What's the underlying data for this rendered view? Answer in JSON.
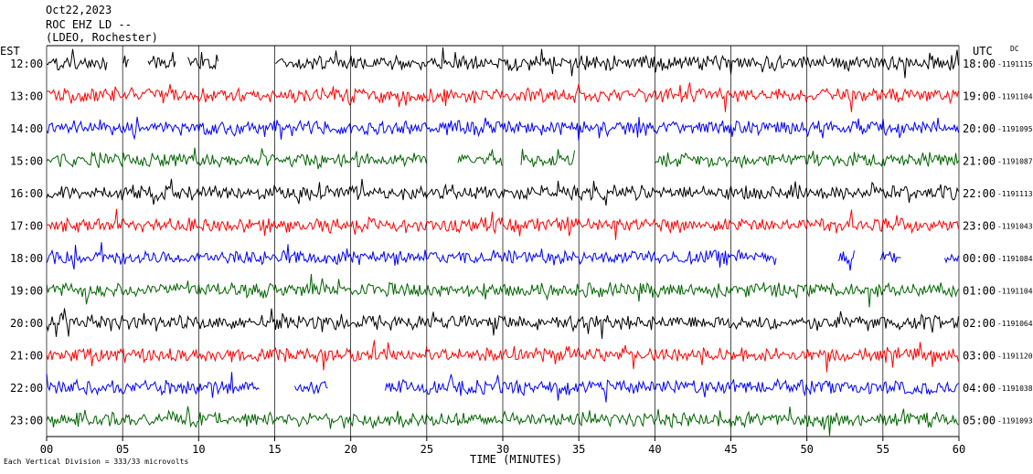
{
  "header": {
    "date": "Oct22,2023",
    "station": "ROC EHZ LD --",
    "network": "(LDEO, Rochester)"
  },
  "footer": {
    "scale_note": "Each Vertical Division = 333/33 microvolts"
  },
  "chart_data": {
    "type": "line",
    "title": "",
    "left_axis_label": "EST",
    "right_axis_label": "UTC",
    "dc_label": "DC",
    "xlabel": "TIME (MINUTES)",
    "xlim": [
      0,
      60
    ],
    "x_ticks": [
      "00",
      "05",
      "10",
      "15",
      "20",
      "25",
      "30",
      "35",
      "40",
      "45",
      "50",
      "55",
      "60"
    ],
    "grid": true,
    "row_colors": [
      "#000000",
      "#ff0000",
      "#0000ff",
      "#006400"
    ],
    "rows": [
      {
        "est": "12:00",
        "utc": "18:00",
        "dc": "1191115",
        "gaps": [
          [
            4,
            5
          ],
          [
            5.5,
            6.6
          ],
          [
            8.5,
            9.2
          ],
          [
            11.3,
            15
          ]
        ]
      },
      {
        "est": "13:00",
        "utc": "19:00",
        "dc": "1191104",
        "gaps": []
      },
      {
        "est": "14:00",
        "utc": "20:00",
        "dc": "1191095",
        "gaps": []
      },
      {
        "est": "15:00",
        "utc": "21:00",
        "dc": "1191087",
        "gaps": [
          [
            25,
            27
          ],
          [
            30,
            31.2
          ],
          [
            34.8,
            40
          ]
        ]
      },
      {
        "est": "16:00",
        "utc": "22:00",
        "dc": "1191113",
        "gaps": []
      },
      {
        "est": "17:00",
        "utc": "23:00",
        "dc": "1191043",
        "gaps": []
      },
      {
        "est": "18:00",
        "utc": "00:00",
        "dc": "1191084",
        "gaps": [
          [
            48,
            52
          ],
          [
            53.2,
            54.8
          ],
          [
            56.2,
            59
          ]
        ]
      },
      {
        "est": "19:00",
        "utc": "01:00",
        "dc": "1191104",
        "gaps": []
      },
      {
        "est": "20:00",
        "utc": "02:00",
        "dc": "1191064",
        "gaps": []
      },
      {
        "est": "21:00",
        "utc": "03:00",
        "dc": "1191120",
        "gaps": []
      },
      {
        "est": "22:00",
        "utc": "04:00",
        "dc": "1191038",
        "gaps": [
          [
            14,
            16.3
          ],
          [
            18.5,
            22.2
          ]
        ]
      },
      {
        "est": "23:00",
        "utc": "05:00",
        "dc": "1191093",
        "gaps": []
      }
    ]
  }
}
